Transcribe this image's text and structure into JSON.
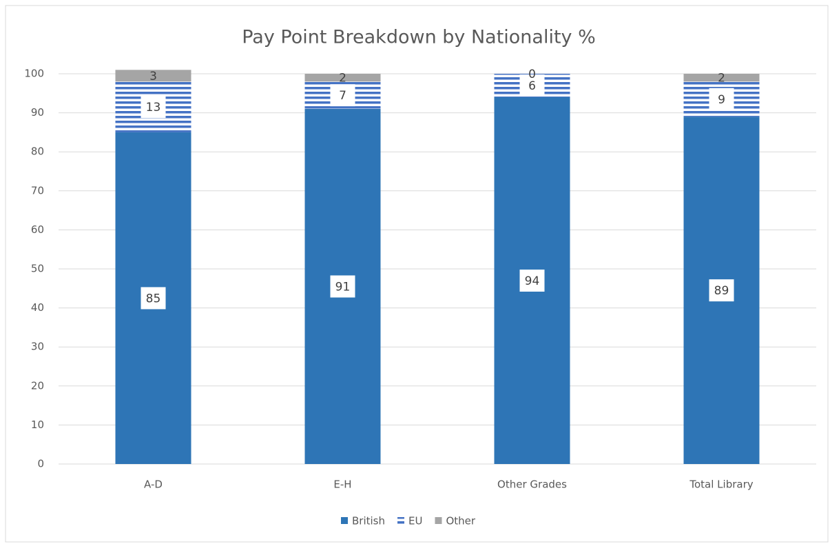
{
  "chart_data": {
    "type": "stacked_bar",
    "title": "Pay Point Breakdown by Nationality %",
    "categories": [
      "A-D",
      "E-H",
      "Other Grades",
      "Total Library"
    ],
    "series": [
      {
        "name": "British",
        "color": "#2e75b6",
        "values": [
          85,
          91,
          94,
          89
        ]
      },
      {
        "name": "EU",
        "color": "#4472c4",
        "hatch": "horizontal",
        "values": [
          13,
          7,
          6,
          9
        ]
      },
      {
        "name": "Other",
        "color": "#a5a5a5",
        "values": [
          3,
          2,
          0,
          2
        ]
      }
    ],
    "ylim": [
      0,
      100
    ],
    "yticks": [
      0,
      10,
      20,
      30,
      40,
      50,
      60,
      70,
      80,
      90,
      100
    ],
    "grid": true,
    "legend": "bottom"
  }
}
